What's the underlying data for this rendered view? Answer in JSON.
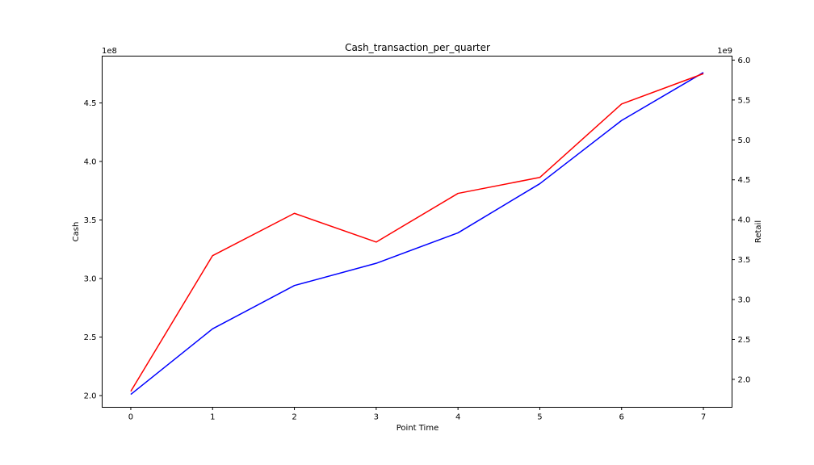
{
  "chart_data": {
    "type": "line",
    "title": "Cash_transaction_per_quarter",
    "xlabel": "Point Time",
    "ylabel_left": "Cash",
    "ylabel_right": "Retail",
    "left_axis_offset": "1e8",
    "right_axis_offset": "1e9",
    "x": [
      0,
      1,
      2,
      3,
      4,
      5,
      6,
      7
    ],
    "x_ticks": [
      "0",
      "1",
      "2",
      "3",
      "4",
      "5",
      "6",
      "7"
    ],
    "left_ticks": [
      "2.0",
      "2.5",
      "3.0",
      "3.5",
      "4.0",
      "4.5"
    ],
    "right_ticks": [
      "2.0",
      "2.5",
      "3.0",
      "3.5",
      "4.0",
      "4.5",
      "5.0",
      "5.5",
      "6.0"
    ],
    "xlim": [
      -0.35,
      7.35
    ],
    "ylim_left": [
      190000000,
      490000000
    ],
    "ylim_right": [
      1650000000,
      6050000000
    ],
    "grid": false,
    "series": [
      {
        "axis": "left",
        "color": "#0000ff",
        "values": [
          201000000,
          257000000,
          294000000,
          313000000,
          339000000,
          381000000,
          435000000,
          476000000
        ]
      },
      {
        "axis": "right",
        "color": "#ff0000",
        "values": [
          1850000000,
          3550000000,
          4080000000,
          3720000000,
          4330000000,
          4530000000,
          5450000000,
          5830000000
        ]
      }
    ]
  }
}
